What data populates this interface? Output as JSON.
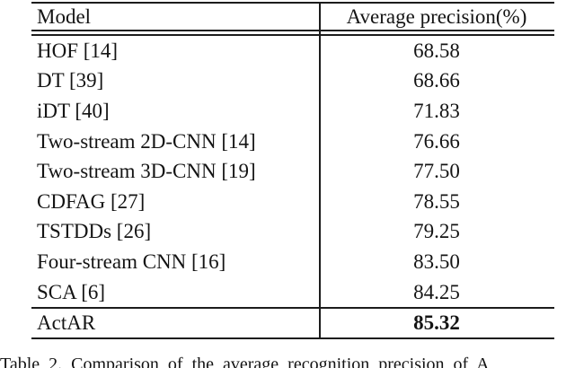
{
  "table": {
    "columns": [
      "Model",
      "Average precision(%)"
    ],
    "rows": [
      {
        "model": "HOF [14]",
        "value": "68.58"
      },
      {
        "model": "DT [39]",
        "value": "68.66"
      },
      {
        "model": "iDT [40]",
        "value": "71.83"
      },
      {
        "model": "Two-stream 2D-CNN [14]",
        "value": "76.66"
      },
      {
        "model": "Two-stream 3D-CNN [19]",
        "value": "77.50"
      },
      {
        "model": "CDFAG [27]",
        "value": "78.55"
      },
      {
        "model": "TSTDDs [26]",
        "value": "79.25"
      },
      {
        "model": "Four-stream CNN [16]",
        "value": "83.50"
      },
      {
        "model": "SCA [6]",
        "value": "84.25"
      }
    ],
    "highlight_row": {
      "model": "ActAR",
      "value": "85.32"
    }
  },
  "caption": {
    "visible_text": "Table 2. Comparison of the average recognition precision of A"
  },
  "colors": {
    "text": "#141414",
    "rule": "#1c1c1c",
    "background": "#ffffff"
  }
}
